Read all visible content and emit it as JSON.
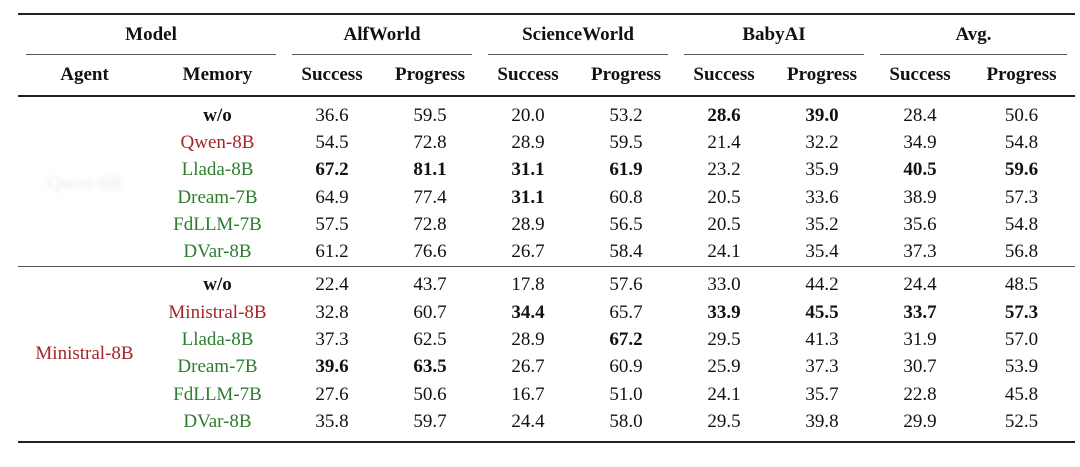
{
  "headers": {
    "model": "Model",
    "agent": "Agent",
    "memory": "Memory",
    "groups": [
      "AlfWorld",
      "ScienceWorld",
      "BabyAI",
      "Avg."
    ],
    "success": "Success",
    "progress": "Progress"
  },
  "blocks": [
    {
      "agent": "Qwen-8B",
      "agent_color": "obscured",
      "rows": [
        {
          "memory": "w/o",
          "color": "black",
          "vals": [
            "36.6",
            "59.5",
            "20.0",
            "53.2",
            "28.6",
            "39.0",
            "28.4",
            "50.6"
          ],
          "bold": [
            false,
            false,
            false,
            false,
            true,
            true,
            false,
            false
          ]
        },
        {
          "memory": "Qwen-8B",
          "color": "red",
          "vals": [
            "54.5",
            "72.8",
            "28.9",
            "59.5",
            "21.4",
            "32.2",
            "34.9",
            "54.8"
          ],
          "bold": [
            false,
            false,
            false,
            false,
            false,
            false,
            false,
            false
          ]
        },
        {
          "memory": "Llada-8B",
          "color": "green",
          "vals": [
            "67.2",
            "81.1",
            "31.1",
            "61.9",
            "23.2",
            "35.9",
            "40.5",
            "59.6"
          ],
          "bold": [
            true,
            true,
            true,
            true,
            false,
            false,
            true,
            true
          ]
        },
        {
          "memory": "Dream-7B",
          "color": "green",
          "vals": [
            "64.9",
            "77.4",
            "31.1",
            "60.8",
            "20.5",
            "33.6",
            "38.9",
            "57.3"
          ],
          "bold": [
            false,
            false,
            true,
            false,
            false,
            false,
            false,
            false
          ]
        },
        {
          "memory": "FdLLM-7B",
          "color": "green",
          "vals": [
            "57.5",
            "72.8",
            "28.9",
            "56.5",
            "20.5",
            "35.2",
            "35.6",
            "54.8"
          ],
          "bold": [
            false,
            false,
            false,
            false,
            false,
            false,
            false,
            false
          ]
        },
        {
          "memory": "DVar-8B",
          "color": "green",
          "vals": [
            "61.2",
            "76.6",
            "26.7",
            "58.4",
            "24.1",
            "35.4",
            "37.3",
            "56.8"
          ],
          "bold": [
            false,
            false,
            false,
            false,
            false,
            false,
            false,
            false
          ]
        }
      ]
    },
    {
      "agent": "Ministral-8B",
      "agent_color": "red",
      "rows": [
        {
          "memory": "w/o",
          "color": "black",
          "vals": [
            "22.4",
            "43.7",
            "17.8",
            "57.6",
            "33.0",
            "44.2",
            "24.4",
            "48.5"
          ],
          "bold": [
            false,
            false,
            false,
            false,
            false,
            false,
            false,
            false
          ]
        },
        {
          "memory": "Ministral-8B",
          "color": "red",
          "vals": [
            "32.8",
            "60.7",
            "34.4",
            "65.7",
            "33.9",
            "45.5",
            "33.7",
            "57.3"
          ],
          "bold": [
            false,
            false,
            true,
            false,
            true,
            true,
            true,
            true
          ]
        },
        {
          "memory": "Llada-8B",
          "color": "green",
          "vals": [
            "37.3",
            "62.5",
            "28.9",
            "67.2",
            "29.5",
            "41.3",
            "31.9",
            "57.0"
          ],
          "bold": [
            false,
            false,
            false,
            true,
            false,
            false,
            false,
            false
          ]
        },
        {
          "memory": "Dream-7B",
          "color": "green",
          "vals": [
            "39.6",
            "63.5",
            "26.7",
            "60.9",
            "25.9",
            "37.3",
            "30.7",
            "53.9"
          ],
          "bold": [
            true,
            true,
            false,
            false,
            false,
            false,
            false,
            false
          ]
        },
        {
          "memory": "FdLLM-7B",
          "color": "green",
          "vals": [
            "27.6",
            "50.6",
            "16.7",
            "51.0",
            "24.1",
            "35.7",
            "22.8",
            "45.8"
          ],
          "bold": [
            false,
            false,
            false,
            false,
            false,
            false,
            false,
            false
          ]
        },
        {
          "memory": "DVar-8B",
          "color": "green",
          "vals": [
            "35.8",
            "59.7",
            "24.4",
            "58.0",
            "29.5",
            "39.8",
            "29.9",
            "52.5"
          ],
          "bold": [
            false,
            false,
            false,
            false,
            false,
            false,
            false,
            false
          ]
        }
      ]
    }
  ]
}
